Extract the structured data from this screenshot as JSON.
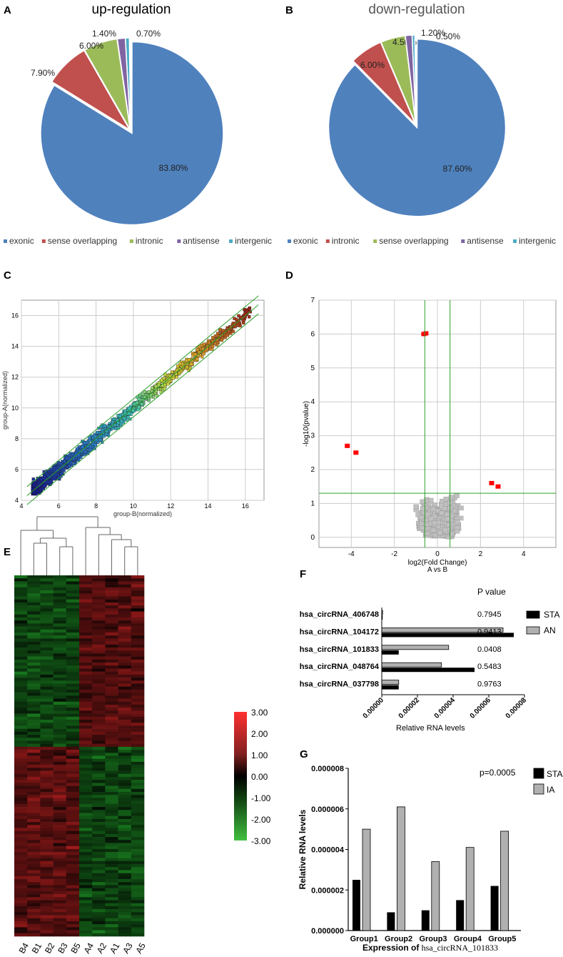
{
  "panels": {
    "A": "A",
    "B": "B",
    "C": "C",
    "D": "D",
    "E": "E",
    "F": "F",
    "G": "G"
  },
  "colors": {
    "exonic": "#4f81bd",
    "red": "#c0504d",
    "green": "#9bbb59",
    "purple": "#8064a2",
    "cyan": "#4bacc6",
    "black": "#000000",
    "gray": "#b0b0b0",
    "sig_red": "#ff0000"
  },
  "chart_data": [
    {
      "id": "A",
      "type": "pie",
      "title": "up-regulation",
      "slices": [
        {
          "name": "exonic",
          "value": 83.8,
          "label": "83.80%",
          "color": "#4f81bd"
        },
        {
          "name": "sense overlapping",
          "value": 7.9,
          "label": "7.90%",
          "color": "#c0504d"
        },
        {
          "name": "intronic",
          "value": 6.0,
          "label": "6.00%",
          "color": "#9bbb59"
        },
        {
          "name": "antisense",
          "value": 1.4,
          "label": "1.40%",
          "color": "#8064a2"
        },
        {
          "name": "intergenic",
          "value": 0.7,
          "label": "0.70%",
          "color": "#4bacc6"
        }
      ]
    },
    {
      "id": "B",
      "type": "pie",
      "title": "down-regulation",
      "slices": [
        {
          "name": "exonic",
          "value": 87.6,
          "label": "87.60%",
          "color": "#4f81bd"
        },
        {
          "name": "intronic",
          "value": 6.0,
          "label": "6.00%",
          "color": "#c0504d"
        },
        {
          "name": "sense overlapping",
          "value": 4.5,
          "label": "4.50%",
          "color": "#9bbb59"
        },
        {
          "name": "antisense",
          "value": 1.2,
          "label": "1.20%",
          "color": "#8064a2"
        },
        {
          "name": "intergenic",
          "value": 0.5,
          "label": "0.50%",
          "color": "#4bacc6"
        }
      ]
    },
    {
      "id": "C",
      "type": "scatter",
      "title": "",
      "xlabel": "group-B(normalized)",
      "ylabel": "group-A(normalized)",
      "xlim": [
        4,
        17
      ],
      "ylim": [
        4,
        17
      ],
      "xticks": [
        "4",
        "6",
        "8",
        "10",
        "12",
        "14",
        "16"
      ],
      "yticks": [
        "4",
        "6",
        "8",
        "10",
        "12",
        "14",
        "16"
      ],
      "fold_lines": [
        0,
        0.585,
        -0.585
      ]
    },
    {
      "id": "D",
      "type": "scatter",
      "title": "",
      "xlabel": "log2(Fold Change)",
      "xlabel2": "A vs B",
      "ylabel": "-log10(pvalue)",
      "xlim": [
        -5.5,
        5.5
      ],
      "ylim": [
        -0.3,
        7
      ],
      "xticks": [
        "-4",
        "-2",
        "0",
        "2",
        "4"
      ],
      "yticks": [
        "0",
        "1",
        "2",
        "3",
        "4",
        "5",
        "6",
        "7"
      ],
      "fc_threshold": 0.585,
      "p_threshold": 1.3
    },
    {
      "id": "E",
      "type": "heatmap",
      "columns": [
        "B4",
        "B1",
        "B2",
        "B3",
        "B5",
        "A4",
        "A2",
        "A1",
        "A3",
        "A5"
      ],
      "scale_ticks": [
        "3.00",
        "2.00",
        "1.00",
        "0.00",
        "-1.00",
        "-2.00",
        "-3.00"
      ],
      "range": [
        -3,
        3
      ]
    },
    {
      "id": "F",
      "type": "bar",
      "orientation": "horizontal",
      "categories": [
        "hsa_circRNA_406748",
        "hsa_circRNA_104172",
        "hsa_circRNA_101833",
        "hsa_circRNA_048764",
        "hsa_circRNA_037798"
      ],
      "series": [
        {
          "name": "STA",
          "values": [
            5e-07,
            7.4e-05,
            9.5e-06,
            5.2e-05,
            9.5e-06
          ],
          "color": "#000000"
        },
        {
          "name": "AN",
          "values": [
            5e-07,
            6.8e-05,
            3.75e-05,
            3.35e-05,
            9.5e-06
          ],
          "color": "#b0b0b0"
        }
      ],
      "pvalues": [
        "0.7945",
        "0.9413",
        "0.0408",
        "0.5483",
        "0.9763"
      ],
      "pvalue_header": "P value",
      "xlabel": "Relative RNA levels",
      "xlim": [
        0,
        8e-05
      ],
      "xticks": [
        "0.00000",
        "0.00002",
        "0.00004",
        "0.00006",
        "0.00008"
      ]
    },
    {
      "id": "G",
      "type": "bar",
      "categories": [
        "Group1",
        "Group2",
        "Group3",
        "Group4",
        "Group5"
      ],
      "series": [
        {
          "name": "STA",
          "values": [
            2.5e-06,
            9e-07,
            1e-06,
            1.5e-06,
            2.2e-06
          ],
          "color": "#000000"
        },
        {
          "name": "IA",
          "values": [
            5e-06,
            6.1e-06,
            3.4e-06,
            4.1e-06,
            4.9e-06
          ],
          "color": "#b0b0b0"
        }
      ],
      "ylabel": "Relative RNA levels",
      "xlabel_prefix": "Expression of ",
      "xlabel_gene": "hsa_circRNA_101833",
      "annotation": "p=0.0005",
      "ylim": [
        0,
        8e-06
      ],
      "yticks": [
        "0.000000",
        "0.000002",
        "0.000004",
        "0.000006",
        "0.000008"
      ]
    }
  ]
}
